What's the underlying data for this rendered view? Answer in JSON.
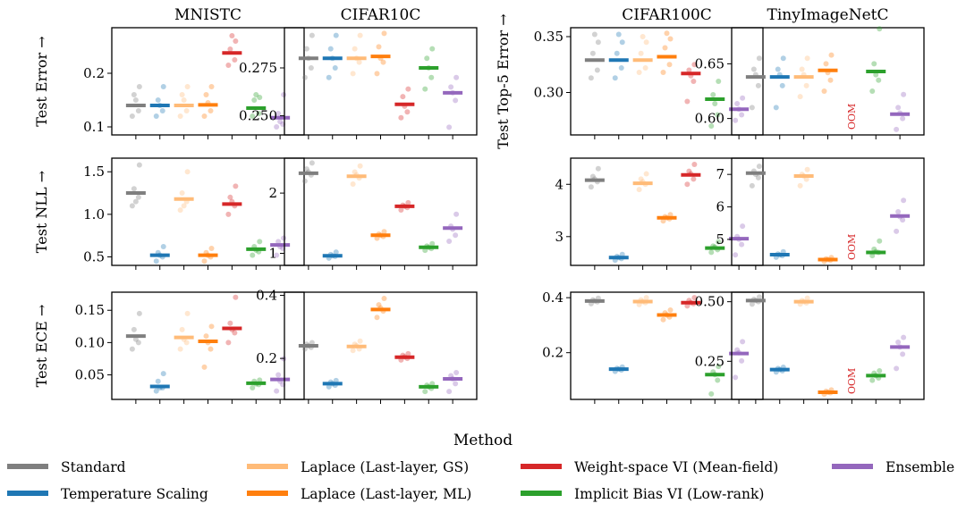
{
  "figure": {
    "x_label": "Method",
    "oom_label": "OOM"
  },
  "methods": [
    {
      "name": "Standard",
      "color": "#7f7f7f"
    },
    {
      "name": "Temperature Scaling",
      "color": "#1f77b4"
    },
    {
      "name": "Laplace (Last-layer, GS)",
      "color": "#ffbb78"
    },
    {
      "name": "Laplace (Last-layer, ML)",
      "color": "#ff7f0e"
    },
    {
      "name": "Weight-space VI (Mean-field)",
      "color": "#d62728"
    },
    {
      "name": "Implicit Bias VI (Low-rank)",
      "color": "#2ca02c"
    },
    {
      "name": "Ensemble",
      "color": "#9467bd"
    }
  ],
  "chart_data": [
    {
      "type": "scatter",
      "title": "MNISTC",
      "ylabel": "Test Error →",
      "ylim": [
        0.085,
        0.285
      ],
      "yticks": [
        0.1,
        0.2
      ],
      "ytick_labels": [
        "0.1",
        "0.2"
      ],
      "values": [
        0.14,
        0.14,
        0.14,
        0.141,
        0.238,
        0.135,
        0.117
      ],
      "points": [
        [
          0.12,
          0.13,
          0.16,
          0.175,
          0.15
        ],
        [
          0.12,
          0.13,
          0.15,
          0.175,
          0.14
        ],
        [
          0.12,
          0.13,
          0.16,
          0.175,
          0.15
        ],
        [
          0.12,
          0.13,
          0.16,
          0.175,
          0.145
        ],
        [
          0.215,
          0.225,
          0.245,
          0.26,
          0.27
        ],
        [
          0.12,
          0.125,
          0.15,
          0.155,
          0.16
        ],
        [
          0.1,
          0.105,
          0.125,
          0.16,
          0.11
        ]
      ],
      "oom": []
    },
    {
      "type": "scatter",
      "title": "CIFAR10C",
      "ylabel": "",
      "ylim": [
        0.24,
        0.296
      ],
      "yticks": [
        0.25,
        0.275
      ],
      "ytick_labels": [
        "0.250",
        "0.275"
      ],
      "values": [
        0.28,
        0.28,
        0.28,
        0.281,
        0.256,
        0.275,
        0.262
      ],
      "points": [
        [
          0.27,
          0.275,
          0.285,
          0.292,
          0.28
        ],
        [
          0.27,
          0.275,
          0.285,
          0.292,
          0.28
        ],
        [
          0.272,
          0.278,
          0.285,
          0.292,
          0.28
        ],
        [
          0.272,
          0.278,
          0.286,
          0.293,
          0.28
        ],
        [
          0.249,
          0.252,
          0.26,
          0.264,
          0.255
        ],
        [
          0.264,
          0.27,
          0.28,
          0.285,
          0.275
        ],
        [
          0.244,
          0.258,
          0.265,
          0.27,
          0.262
        ]
      ],
      "oom": []
    },
    {
      "type": "scatter",
      "title": "CIFAR100C",
      "ylabel": "Test Top-5 Error →",
      "ylim": [
        0.262,
        0.358
      ],
      "yticks": [
        0.3,
        0.35
      ],
      "ytick_labels": [
        "0.30",
        "0.35"
      ],
      "values": [
        0.329,
        0.329,
        0.329,
        0.332,
        0.317,
        0.294,
        0.285
      ],
      "points": [
        [
          0.313,
          0.32,
          0.335,
          0.345,
          0.352
        ],
        [
          0.313,
          0.322,
          0.335,
          0.345,
          0.352
        ],
        [
          0.318,
          0.322,
          0.335,
          0.345,
          0.35
        ],
        [
          0.318,
          0.325,
          0.34,
          0.348,
          0.353
        ],
        [
          0.292,
          0.31,
          0.32,
          0.325,
          0.315
        ],
        [
          0.27,
          0.28,
          0.298,
          0.31,
          0.29
        ],
        [
          0.275,
          0.28,
          0.29,
          0.295,
          0.285
        ]
      ],
      "oom": []
    },
    {
      "type": "scatter",
      "title": "TinyImageNetC",
      "ylabel": "",
      "ylim": [
        0.585,
        0.683
      ],
      "yticks": [
        0.6,
        0.65
      ],
      "ytick_labels": [
        "0.60",
        "0.65"
      ],
      "values": [
        0.638,
        0.638,
        0.638,
        0.644,
        null,
        0.643,
        0.604
      ],
      "points": [
        [
          0.61,
          0.63,
          0.645,
          0.655,
          0.64
        ],
        [
          0.61,
          0.63,
          0.645,
          0.655,
          0.64
        ],
        [
          0.62,
          0.63,
          0.645,
          0.655,
          0.64
        ],
        [
          0.625,
          0.635,
          0.65,
          0.658,
          0.642
        ],
        [],
        [
          0.625,
          0.635,
          0.65,
          0.682,
          0.64
        ],
        [
          0.59,
          0.6,
          0.61,
          0.622,
          0.605
        ]
      ],
      "oom": [
        4
      ]
    },
    {
      "type": "scatter",
      "title": "",
      "ylabel": "Test NLL →",
      "ylim": [
        0.4,
        1.66
      ],
      "yticks": [
        0.5,
        1.0,
        1.5
      ],
      "ytick_labels": [
        "0.5",
        "1.0",
        "1.5"
      ],
      "values": [
        1.25,
        0.52,
        1.18,
        0.52,
        1.12,
        0.59,
        0.64
      ],
      "points": [
        [
          1.1,
          1.2,
          1.3,
          1.58,
          1.15
        ],
        [
          0.45,
          0.5,
          0.55,
          0.62,
          0.52
        ],
        [
          1.05,
          1.15,
          1.25,
          1.5,
          1.1
        ],
        [
          0.45,
          0.5,
          0.55,
          0.6,
          0.52
        ],
        [
          1.0,
          1.1,
          1.2,
          1.33,
          1.15
        ],
        [
          0.52,
          0.56,
          0.62,
          0.68,
          0.58
        ],
        [
          0.52,
          0.6,
          0.68,
          0.72,
          0.62
        ]
      ],
      "oom": []
    },
    {
      "type": "scatter",
      "title": "",
      "ylabel": "",
      "ylim": [
        0.8,
        2.58
      ],
      "yticks": [
        1,
        2
      ],
      "ytick_labels": [
        "1",
        "2"
      ],
      "values": [
        2.33,
        0.96,
        2.28,
        1.3,
        1.78,
        1.1,
        1.42
      ],
      "points": [
        [
          2.2,
          2.3,
          2.4,
          2.5,
          2.35
        ],
        [
          0.92,
          0.95,
          0.98,
          1.02,
          0.96
        ],
        [
          2.15,
          2.25,
          2.35,
          2.45,
          2.3
        ],
        [
          1.25,
          1.28,
          1.32,
          1.36,
          1.3
        ],
        [
          1.72,
          1.76,
          1.8,
          1.84,
          1.78
        ],
        [
          1.05,
          1.08,
          1.12,
          1.16,
          1.1
        ],
        [
          1.2,
          1.3,
          1.45,
          1.65,
          1.4
        ]
      ],
      "oom": []
    },
    {
      "type": "scatter",
      "title": "",
      "ylabel": "",
      "ylim": [
        2.45,
        4.5
      ],
      "yticks": [
        3,
        4
      ],
      "ytick_labels": [
        "3",
        "4"
      ],
      "values": [
        4.08,
        2.6,
        4.02,
        3.36,
        4.18,
        2.78,
        2.96
      ],
      "points": [
        [
          3.95,
          4.05,
          4.15,
          4.3,
          4.1
        ],
        [
          2.55,
          2.58,
          2.62,
          2.66,
          2.6
        ],
        [
          3.9,
          4.0,
          4.1,
          4.2,
          4.05
        ],
        [
          3.3,
          3.34,
          3.38,
          3.42,
          3.36
        ],
        [
          4.0,
          4.1,
          4.25,
          4.38,
          4.2
        ],
        [
          2.7,
          2.75,
          2.82,
          2.9,
          2.8
        ],
        [
          2.65,
          2.85,
          3.0,
          3.2,
          2.95
        ]
      ],
      "oom": []
    },
    {
      "type": "scatter",
      "title": "",
      "ylabel": "",
      "ylim": [
        4.2,
        7.5
      ],
      "yticks": [
        5,
        6,
        7
      ],
      "ytick_labels": [
        "5",
        "6",
        "7"
      ],
      "values": [
        7.04,
        4.53,
        6.95,
        4.38,
        null,
        4.6,
        5.72
      ],
      "points": [
        [
          6.65,
          6.9,
          7.1,
          7.25,
          7.0
        ],
        [
          4.45,
          4.5,
          4.55,
          4.62,
          4.52
        ],
        [
          6.65,
          6.85,
          7.0,
          7.15,
          6.95
        ],
        [
          4.32,
          4.36,
          4.4,
          4.44,
          4.38
        ],
        [],
        [
          4.5,
          4.6,
          4.7,
          4.95,
          4.62
        ],
        [
          5.25,
          5.6,
          5.85,
          6.2,
          5.7
        ]
      ],
      "oom": [
        4
      ]
    },
    {
      "type": "scatter",
      "title": "",
      "ylabel": "Test ECE →",
      "ylim": [
        0.012,
        0.178
      ],
      "yticks": [
        0.05,
        0.1,
        0.15
      ],
      "ytick_labels": [
        "0.05",
        "0.10",
        "0.15"
      ],
      "values": [
        0.11,
        0.032,
        0.108,
        0.102,
        0.122,
        0.037,
        0.043
      ],
      "points": [
        [
          0.09,
          0.1,
          0.12,
          0.145,
          0.105
        ],
        [
          0.025,
          0.03,
          0.04,
          0.052,
          0.03
        ],
        [
          0.09,
          0.1,
          0.12,
          0.145,
          0.105
        ],
        [
          0.062,
          0.09,
          0.11,
          0.125,
          0.1
        ],
        [
          0.1,
          0.115,
          0.13,
          0.17,
          0.12
        ],
        [
          0.03,
          0.035,
          0.04,
          0.042,
          0.036
        ],
        [
          0.025,
          0.035,
          0.05,
          0.075,
          0.04
        ]
      ],
      "oom": []
    },
    {
      "type": "scatter",
      "title": "",
      "ylabel": "",
      "ylim": [
        0.07,
        0.41
      ],
      "yticks": [
        0.2,
        0.4
      ],
      "ytick_labels": [
        "0.2",
        "0.4"
      ],
      "values": [
        0.24,
        0.12,
        0.238,
        0.355,
        0.204,
        0.11,
        0.135
      ],
      "points": [
        [
          0.23,
          0.235,
          0.245,
          0.25,
          0.24
        ],
        [
          0.11,
          0.115,
          0.125,
          0.13,
          0.12
        ],
        [
          0.225,
          0.23,
          0.245,
          0.255,
          0.24
        ],
        [
          0.33,
          0.35,
          0.37,
          0.39,
          0.36
        ],
        [
          0.195,
          0.2,
          0.21,
          0.215,
          0.205
        ],
        [
          0.095,
          0.105,
          0.115,
          0.12,
          0.11
        ],
        [
          0.095,
          0.12,
          0.145,
          0.155,
          0.135
        ]
      ],
      "oom": []
    },
    {
      "type": "scatter",
      "title": "",
      "ylabel": "",
      "ylim": [
        0.03,
        0.42
      ],
      "yticks": [
        0.2,
        0.4
      ],
      "ytick_labels": [
        "0.2",
        "0.4"
      ],
      "values": [
        0.388,
        0.14,
        0.386,
        0.337,
        0.382,
        0.12,
        0.197
      ],
      "points": [
        [
          0.378,
          0.385,
          0.392,
          0.398,
          0.388
        ],
        [
          0.132,
          0.137,
          0.143,
          0.148,
          0.14
        ],
        [
          0.375,
          0.382,
          0.392,
          0.4,
          0.386
        ],
        [
          0.32,
          0.33,
          0.345,
          0.355,
          0.337
        ],
        [
          0.37,
          0.378,
          0.39,
          0.4,
          0.382
        ],
        [
          0.05,
          0.1,
          0.13,
          0.15,
          0.12
        ],
        [
          0.11,
          0.17,
          0.21,
          0.24,
          0.2
        ]
      ],
      "oom": []
    },
    {
      "type": "scatter",
      "title": "",
      "ylabel": "",
      "ylim": [
        0.09,
        0.54
      ],
      "yticks": [
        0.25,
        0.5
      ],
      "ytick_labels": [
        "0.25",
        "0.50"
      ],
      "values": [
        0.505,
        0.215,
        0.5,
        0.12,
        null,
        0.19,
        0.31
      ],
      "points": [
        [
          0.49,
          0.5,
          0.51,
          0.52,
          0.505
        ],
        [
          0.205,
          0.21,
          0.22,
          0.225,
          0.215
        ],
        [
          0.49,
          0.495,
          0.505,
          0.515,
          0.5
        ],
        [
          0.112,
          0.118,
          0.124,
          0.13,
          0.12
        ],
        [],
        [
          0.17,
          0.18,
          0.2,
          0.21,
          0.19
        ],
        [
          0.22,
          0.28,
          0.33,
          0.35,
          0.31
        ]
      ],
      "oom": [
        4
      ]
    }
  ]
}
